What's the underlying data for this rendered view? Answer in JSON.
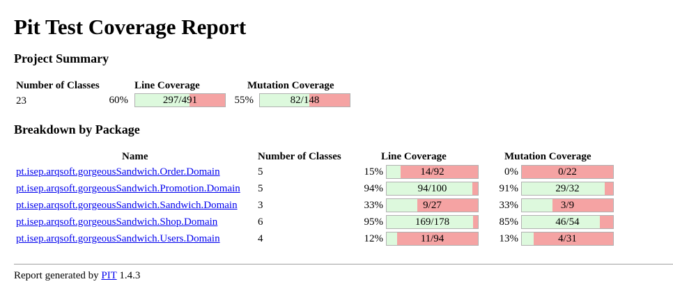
{
  "title": "Pit Test Coverage Report",
  "project_summary": {
    "heading": "Project Summary",
    "headers": {
      "classes": "Number of Classes",
      "line": "Line Coverage",
      "mutation": "Mutation Coverage"
    },
    "classes": "23",
    "line": {
      "pct": "60%",
      "text": "297/491",
      "ratio": 0.6049
    },
    "mutation": {
      "pct": "55%",
      "text": "82/148",
      "ratio": 0.5541
    }
  },
  "breakdown": {
    "heading": "Breakdown by Package",
    "headers": {
      "name": "Name",
      "classes": "Number of Classes",
      "line": "Line Coverage",
      "mutation": "Mutation Coverage"
    },
    "rows": [
      {
        "name": "pt.isep.arqsoft.gorgeousSandwich.Order.Domain",
        "classes": "5",
        "line": {
          "pct": "15%",
          "text": "14/92",
          "ratio": 0.1522
        },
        "mutation": {
          "pct": "0%",
          "text": "0/22",
          "ratio": 0.0
        }
      },
      {
        "name": "pt.isep.arqsoft.gorgeousSandwich.Promotion.Domain",
        "classes": "5",
        "line": {
          "pct": "94%",
          "text": "94/100",
          "ratio": 0.94
        },
        "mutation": {
          "pct": "91%",
          "text": "29/32",
          "ratio": 0.9063
        }
      },
      {
        "name": "pt.isep.arqsoft.gorgeousSandwich.Sandwich.Domain",
        "classes": "3",
        "line": {
          "pct": "33%",
          "text": "9/27",
          "ratio": 0.3333
        },
        "mutation": {
          "pct": "33%",
          "text": "3/9",
          "ratio": 0.3333
        }
      },
      {
        "name": "pt.isep.arqsoft.gorgeousSandwich.Shop.Domain",
        "classes": "6",
        "line": {
          "pct": "95%",
          "text": "169/178",
          "ratio": 0.9494
        },
        "mutation": {
          "pct": "85%",
          "text": "46/54",
          "ratio": 0.8519
        }
      },
      {
        "name": "pt.isep.arqsoft.gorgeousSandwich.Users.Domain",
        "classes": "4",
        "line": {
          "pct": "12%",
          "text": "11/94",
          "ratio": 0.117
        },
        "mutation": {
          "pct": "13%",
          "text": "4/31",
          "ratio": 0.129
        }
      }
    ]
  },
  "footer": {
    "prefix": "Report generated by",
    "link": "PIT",
    "version": "1.4.3"
  },
  "colors": {
    "covered": "#ddf9dd",
    "uncovered": "#f5a3a3",
    "link": "#0000ee"
  }
}
